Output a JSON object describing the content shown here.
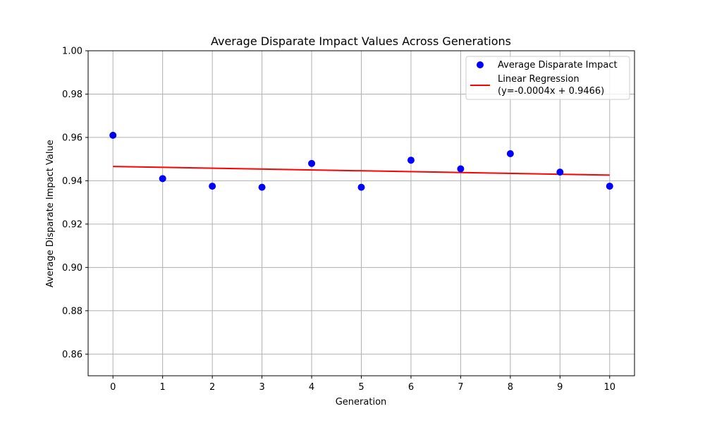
{
  "chart_data": {
    "type": "scatter",
    "title": "Average Disparate Impact Values Across Generations",
    "xlabel": "Generation",
    "ylabel": "Average Disparate Impact Value",
    "xlim": [
      -0.5,
      10.5
    ],
    "ylim": [
      0.85,
      1.0
    ],
    "xticks": [
      0,
      1,
      2,
      3,
      4,
      5,
      6,
      7,
      8,
      9,
      10
    ],
    "yticks": [
      "0.86",
      "0.88",
      "0.90",
      "0.92",
      "0.94",
      "0.96",
      "0.98",
      "1.00"
    ],
    "grid": true,
    "legend_position": "top-right",
    "series": [
      {
        "name": "Average Disparate Impact",
        "kind": "scatter",
        "color": "#0000ff",
        "x": [
          0,
          1,
          2,
          3,
          4,
          5,
          6,
          7,
          8,
          9,
          10
        ],
        "y": [
          0.961,
          0.941,
          0.9375,
          0.937,
          0.948,
          0.937,
          0.9495,
          0.9455,
          0.9525,
          0.944,
          0.9375
        ]
      },
      {
        "name": "Linear Regression",
        "name_line2": "(y=-0.0004x + 0.9466)",
        "kind": "line",
        "color": "#ff0000",
        "slope": -0.0004,
        "intercept": 0.9466,
        "x_range": [
          0,
          10
        ]
      }
    ]
  }
}
